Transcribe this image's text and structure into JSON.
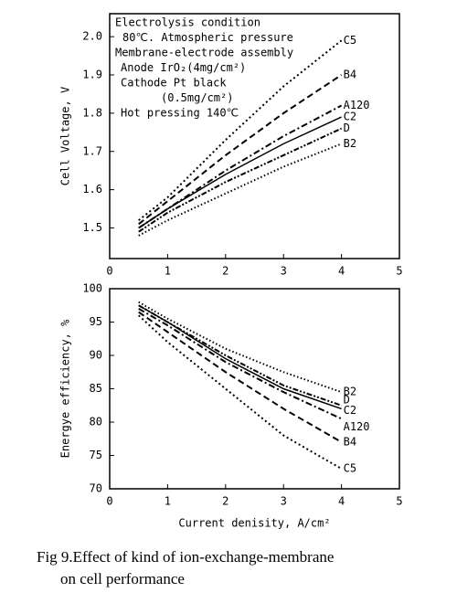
{
  "caption": [
    "Fig 9.Effect of kind of ion-exchange-membrane",
    "on cell performance"
  ],
  "chart_data": [
    {
      "type": "line",
      "ylabel": "Cell Voltage, V",
      "annotations": [
        "Electrolysis condition",
        "80℃. Atmospheric pressure",
        "Membrane-electrode assembly",
        "Anode   IrO₂(4mg/cm²)",
        "Cathode Pt black",
        "(0.5mg/cm²)",
        "Hot pressing  140℃"
      ],
      "x": [
        0.5,
        1,
        2,
        3,
        4
      ],
      "xlim": [
        0,
        5
      ],
      "xticks": [
        0,
        1,
        2,
        3,
        4,
        5
      ],
      "ylim": [
        1.42,
        2.06
      ],
      "yticks": [
        1.5,
        1.6,
        1.7,
        1.8,
        1.9,
        {
          "value": 2,
          "label": "2.0"
        }
      ],
      "grid": false,
      "series": [
        {
          "name": "C5",
          "color": "#000000",
          "linestyle": "dotted",
          "values": [
            1.52,
            1.58,
            1.73,
            1.87,
            1.99
          ]
        },
        {
          "name": "B4",
          "color": "#000000",
          "linestyle": "dashed",
          "values": [
            1.51,
            1.57,
            1.69,
            1.8,
            1.9
          ]
        },
        {
          "name": "A120",
          "color": "#000000",
          "linestyle": "dashdot",
          "values": [
            1.5,
            1.55,
            1.65,
            1.74,
            1.82
          ]
        },
        {
          "name": "C2",
          "color": "#000000",
          "linestyle": "solid",
          "values": [
            1.5,
            1.55,
            1.64,
            1.72,
            1.79
          ]
        },
        {
          "name": "D",
          "color": "#000000",
          "linestyle": "dashdotdot",
          "values": [
            1.49,
            1.54,
            1.62,
            1.69,
            1.76
          ]
        },
        {
          "name": "B2",
          "color": "#000000",
          "linestyle": "finedotted",
          "values": [
            1.48,
            1.52,
            1.59,
            1.66,
            1.72
          ]
        }
      ]
    },
    {
      "type": "line",
      "ylabel": "Energye efficiency, %",
      "xlabel": "Current denisity, A/cm²",
      "x": [
        0.5,
        1,
        2,
        3,
        4
      ],
      "xlim": [
        0,
        5
      ],
      "xticks": [
        0,
        1,
        2,
        3,
        4,
        5
      ],
      "ylim": [
        70,
        100
      ],
      "yticks": [
        70,
        75,
        80,
        85,
        90,
        95,
        100
      ],
      "grid": false,
      "series": [
        {
          "name": "C5",
          "color": "#000000",
          "linestyle": "dotted",
          "values": [
            96,
            92,
            85,
            78,
            73
          ]
        },
        {
          "name": "B4",
          "color": "#000000",
          "linestyle": "dashed",
          "values": [
            96.5,
            93.5,
            87.5,
            82,
            77
          ]
        },
        {
          "name": "A120",
          "color": "#000000",
          "linestyle": "dashdot",
          "values": [
            97,
            94.5,
            89,
            84.5,
            80.5
          ]
        },
        {
          "name": "C2",
          "color": "#000000",
          "linestyle": "solid",
          "values": [
            97.5,
            95,
            89.5,
            85,
            82
          ]
        },
        {
          "name": "D",
          "color": "#000000",
          "linestyle": "dashdotdot",
          "values": [
            97.5,
            95,
            90,
            85.5,
            82.5
          ]
        },
        {
          "name": "B2",
          "color": "#000000",
          "linestyle": "finedotted",
          "values": [
            98,
            95.5,
            91,
            87.5,
            84.5
          ]
        }
      ]
    }
  ]
}
